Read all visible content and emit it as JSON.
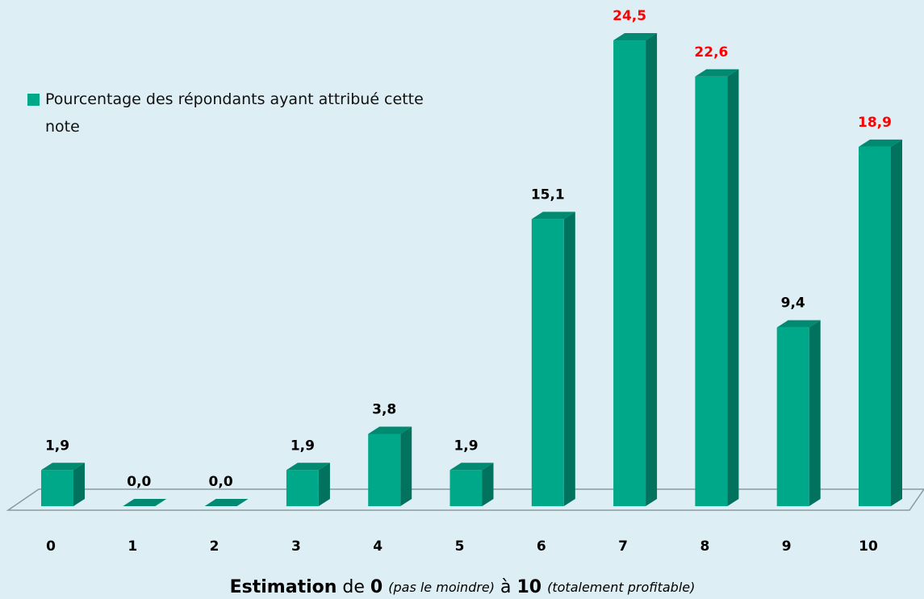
{
  "chart_data": {
    "type": "bar3d",
    "categories": [
      "0",
      "1",
      "2",
      "3",
      "4",
      "5",
      "6",
      "7",
      "8",
      "9",
      "10"
    ],
    "series": [
      {
        "name": "Pourcentage des répondants ayant attribué cette note",
        "color": "#00a88a",
        "values": [
          1.9,
          0.0,
          0.0,
          1.9,
          3.8,
          1.9,
          15.1,
          24.5,
          22.6,
          9.4,
          18.9
        ],
        "value_labels": [
          "1,9",
          "0,0",
          "0,0",
          "1,9",
          "3,8",
          "1,9",
          "15,1",
          "24,5",
          "22,6",
          "9,4",
          "18,9"
        ],
        "value_label_colors": [
          "#000000",
          "#000000",
          "#000000",
          "#000000",
          "#000000",
          "#000000",
          "#000000",
          "#ff0000",
          "#ff0000",
          "#000000",
          "#ff0000"
        ]
      }
    ],
    "xlabel": [
      "Estimation",
      "de",
      "0",
      "(pas le moindre)",
      "à",
      "10",
      "(totalement profitable)"
    ],
    "legend": "top-left"
  }
}
